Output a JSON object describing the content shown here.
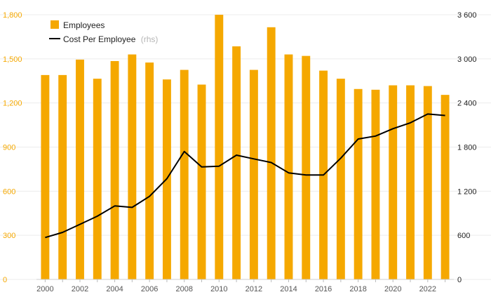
{
  "chart_data": {
    "type": "bar",
    "categories": [
      "2000",
      "2001",
      "2002",
      "2003",
      "2004",
      "2005",
      "2006",
      "2007",
      "2008",
      "2009",
      "2010",
      "2011",
      "2012",
      "2013",
      "2014",
      "2015",
      "2016",
      "2017",
      "2018",
      "2019",
      "2020",
      "2021",
      "2022",
      "2023"
    ],
    "series": [
      {
        "name": "Employees",
        "type": "bar",
        "axis": "left",
        "color": "#f5a800",
        "values": [
          1390,
          1390,
          1495,
          1365,
          1485,
          1530,
          1475,
          1360,
          1425,
          1325,
          1800,
          1585,
          1425,
          1715,
          1530,
          1520,
          1420,
          1365,
          1295,
          1290,
          1320,
          1320,
          1315,
          1255
        ]
      },
      {
        "name": "Cost Per Employee",
        "legend_suffix": "(rhs)",
        "type": "line",
        "axis": "right",
        "color": "#000000",
        "values": [
          570,
          640,
          750,
          860,
          1000,
          980,
          1130,
          1370,
          1740,
          1530,
          1540,
          1690,
          1640,
          1590,
          1450,
          1420,
          1420,
          1650,
          1910,
          1950,
          2050,
          2130,
          2250,
          2230
        ]
      }
    ],
    "y_left": {
      "ylim": [
        0,
        1800
      ],
      "ticks": [
        "0",
        "300",
        "600",
        "900",
        "1,200",
        "1,500",
        "1,800"
      ]
    },
    "y_right": {
      "ylim": [
        0,
        3600
      ],
      "ticks": [
        "0",
        "600",
        "1 200",
        "1 800",
        "2 400",
        "3 000",
        "3 600"
      ]
    },
    "x_tick_labels": [
      "2000",
      "2002",
      "2004",
      "2006",
      "2008",
      "2010",
      "2012",
      "2014",
      "2016",
      "2018",
      "2020",
      "2022"
    ],
    "grid": true,
    "legend_position": "top-left"
  }
}
